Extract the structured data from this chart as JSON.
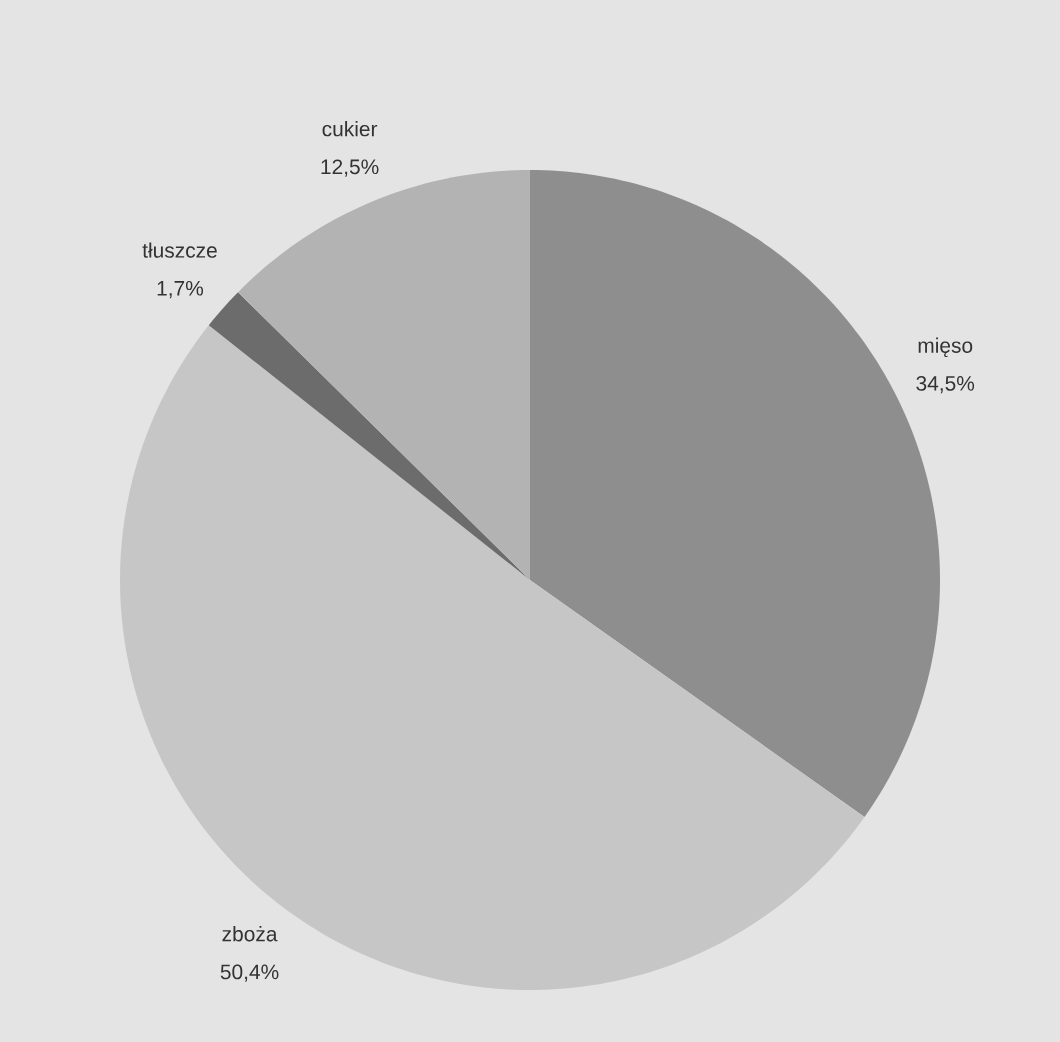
{
  "chart_data": {
    "type": "pie",
    "categories": [
      "mięso",
      "zboża",
      "tłuszcze",
      "cukier"
    ],
    "values": [
      34.5,
      50.4,
      1.7,
      12.5
    ],
    "colors": [
      "#8e8e8e",
      "#c6c6c6",
      "#6c6c6c",
      "#b3b3b3"
    ],
    "value_labels": [
      "34,5%",
      "50,4%",
      "1,7%",
      "12,5%"
    ]
  }
}
